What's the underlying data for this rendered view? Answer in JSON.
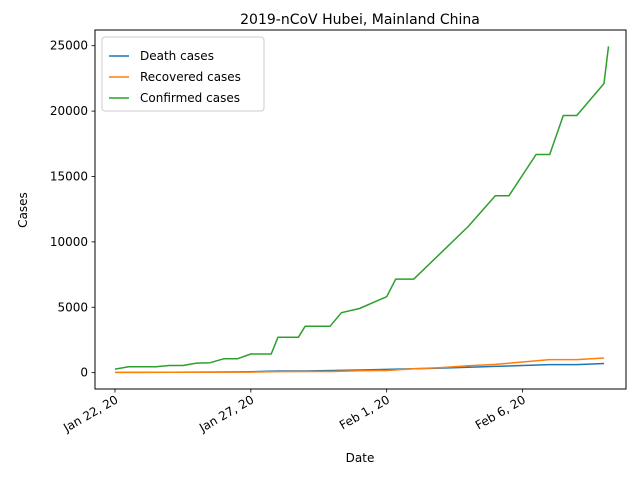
{
  "chart_data": {
    "type": "line",
    "title": "2019-nCoV Hubei, Mainland China",
    "xlabel": "Date",
    "ylabel": "Cases",
    "grid": false,
    "legend_position": "top-left",
    "xlim": [
      "2020-01-22",
      "2020-02-09"
    ],
    "ylim": [
      -1250,
      26200
    ],
    "x_ticks": [
      {
        "date": "2020-01-22",
        "label": "Jan 22, 20"
      },
      {
        "date": "2020-01-27",
        "label": "Jan 27, 20"
      },
      {
        "date": "2020-02-01",
        "label": "Feb 1, 20"
      },
      {
        "date": "2020-02-06",
        "label": "Feb 6, 20"
      }
    ],
    "y_ticks": [
      0,
      5000,
      10000,
      15000,
      20000,
      25000
    ],
    "series": [
      {
        "name": "Death cases",
        "color": "#1f77b4",
        "points": [
          [
            "2020-01-22 00:00",
            17
          ],
          [
            "2020-01-23 00:00",
            17
          ],
          [
            "2020-01-24 00:00",
            24
          ],
          [
            "2020-01-25 00:00",
            40
          ],
          [
            "2020-01-26 00:00",
            52
          ],
          [
            "2020-01-27 00:00",
            76
          ],
          [
            "2020-01-28 00:00",
            125
          ],
          [
            "2020-01-29 00:00",
            125
          ],
          [
            "2020-01-30 00:00",
            162
          ],
          [
            "2020-01-31 00:00",
            204
          ],
          [
            "2020-02-01 00:00",
            249
          ],
          [
            "2020-02-02 00:00",
            294
          ],
          [
            "2020-02-03 00:00",
            350
          ],
          [
            "2020-02-04 00:00",
            414
          ],
          [
            "2020-02-05 00:00",
            479
          ],
          [
            "2020-02-06 00:00",
            549
          ],
          [
            "2020-02-07 00:00",
            618
          ],
          [
            "2020-02-08 00:00",
            618
          ],
          [
            "2020-02-09 00:00",
            699
          ]
        ]
      },
      {
        "name": "Recovered cases",
        "color": "#ff7f0e",
        "points": [
          [
            "2020-01-22 00:00",
            28
          ],
          [
            "2020-01-23 00:00",
            28
          ],
          [
            "2020-01-24 00:00",
            31
          ],
          [
            "2020-01-25 00:00",
            32
          ],
          [
            "2020-01-26 00:00",
            42
          ],
          [
            "2020-01-27 00:00",
            45
          ],
          [
            "2020-01-28 00:00",
            80
          ],
          [
            "2020-01-29 00:00",
            88
          ],
          [
            "2020-01-30 00:00",
            90
          ],
          [
            "2020-01-31 00:00",
            141
          ],
          [
            "2020-02-01 00:00",
            168
          ],
          [
            "2020-02-02 00:00",
            295
          ],
          [
            "2020-02-03 00:00",
            386
          ],
          [
            "2020-02-04 00:00",
            522
          ],
          [
            "2020-02-05 00:00",
            633
          ],
          [
            "2020-02-06 00:00",
            817
          ],
          [
            "2020-02-07 00:00",
            1000
          ],
          [
            "2020-02-08 00:00",
            1000
          ],
          [
            "2020-02-09 00:00",
            1123
          ]
        ]
      },
      {
        "name": "Confirmed cases",
        "color": "#2ca02c",
        "points": [
          [
            "2020-01-22 00:00",
            270
          ],
          [
            "2020-01-22 12:00",
            444
          ],
          [
            "2020-01-23 12:00",
            444
          ],
          [
            "2020-01-24 00:00",
            549
          ],
          [
            "2020-01-24 12:00",
            549
          ],
          [
            "2020-01-25 00:00",
            729
          ],
          [
            "2020-01-25 12:00",
            761
          ],
          [
            "2020-01-26 00:00",
            1058
          ],
          [
            "2020-01-26 12:00",
            1058
          ],
          [
            "2020-01-27 00:00",
            1423
          ],
          [
            "2020-01-27 18:00",
            1423
          ],
          [
            "2020-01-28 00:00",
            2714
          ],
          [
            "2020-01-28 18:00",
            2714
          ],
          [
            "2020-01-29 00:00",
            3554
          ],
          [
            "2020-01-29 22:00",
            3554
          ],
          [
            "2020-01-30 08:00",
            4586
          ],
          [
            "2020-01-31 00:00",
            4903
          ],
          [
            "2020-02-01 00:00",
            5806
          ],
          [
            "2020-02-01 08:00",
            7153
          ],
          [
            "2020-02-01 12:00",
            7153
          ],
          [
            "2020-02-02 00:00",
            7153
          ],
          [
            "2020-02-04 00:00",
            11177
          ],
          [
            "2020-02-05 00:00",
            13522
          ],
          [
            "2020-02-05 12:00",
            13522
          ],
          [
            "2020-02-06 12:00",
            16678
          ],
          [
            "2020-02-07 00:00",
            16678
          ],
          [
            "2020-02-07 12:00",
            19665
          ],
          [
            "2020-02-08 00:00",
            19665
          ],
          [
            "2020-02-09 00:00",
            22112
          ],
          [
            "2020-02-09 04:00",
            24953
          ]
        ]
      }
    ]
  }
}
